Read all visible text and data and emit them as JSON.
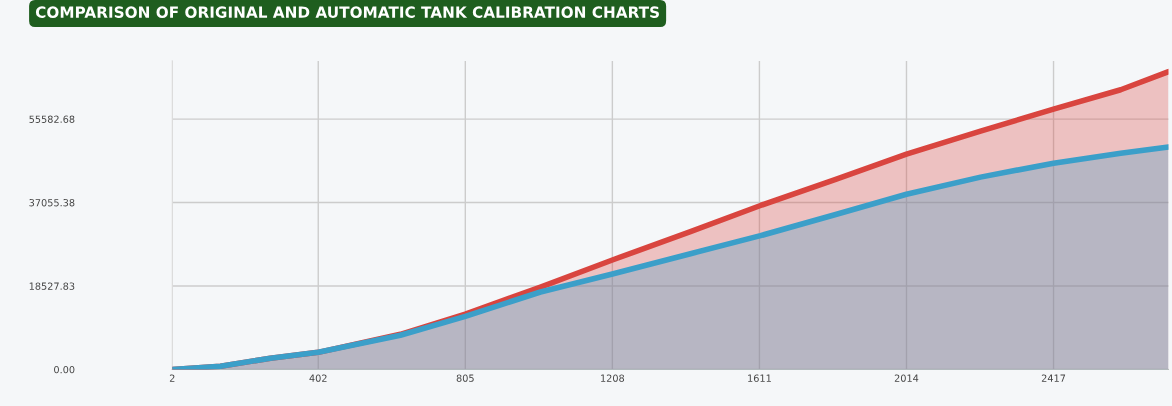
{
  "chart_data": {
    "type": "area",
    "title": "COMPARISON OF ORIGINAL AND AUTOMATIC TANK CALIBRATION CHARTS",
    "xlim": [
      2,
      2732
    ],
    "xticks": [
      2,
      402,
      805,
      1208,
      1611,
      2014,
      2417
    ],
    "ylim": [
      0,
      68500
    ],
    "yticks": [
      {
        "value": 0,
        "label": "0.00"
      },
      18527.83,
      37055.38,
      55582.68
    ],
    "grid": true,
    "series": [
      {
        "color": "#d9453f",
        "x": [
          2,
          134,
          271,
          402,
          627,
          805,
          1011,
          1208,
          1422,
          1614,
          1820,
          2014,
          2217,
          2417,
          2601,
          2732
        ],
        "values": [
          0,
          700,
          2500,
          3800,
          7800,
          12300,
          18300,
          24300,
          30600,
          36400,
          42200,
          47800,
          52900,
          57800,
          62100,
          66100
        ]
      },
      {
        "color": "#3b9fc9",
        "x": [
          2,
          134,
          271,
          402,
          627,
          805,
          1011,
          1208,
          1422,
          1614,
          1820,
          2014,
          2217,
          2417,
          2601,
          2732
        ],
        "values": [
          0,
          700,
          2500,
          3800,
          7600,
          11800,
          17200,
          21200,
          25700,
          29700,
          34400,
          38900,
          42700,
          45800,
          48000,
          49400
        ]
      }
    ]
  }
}
